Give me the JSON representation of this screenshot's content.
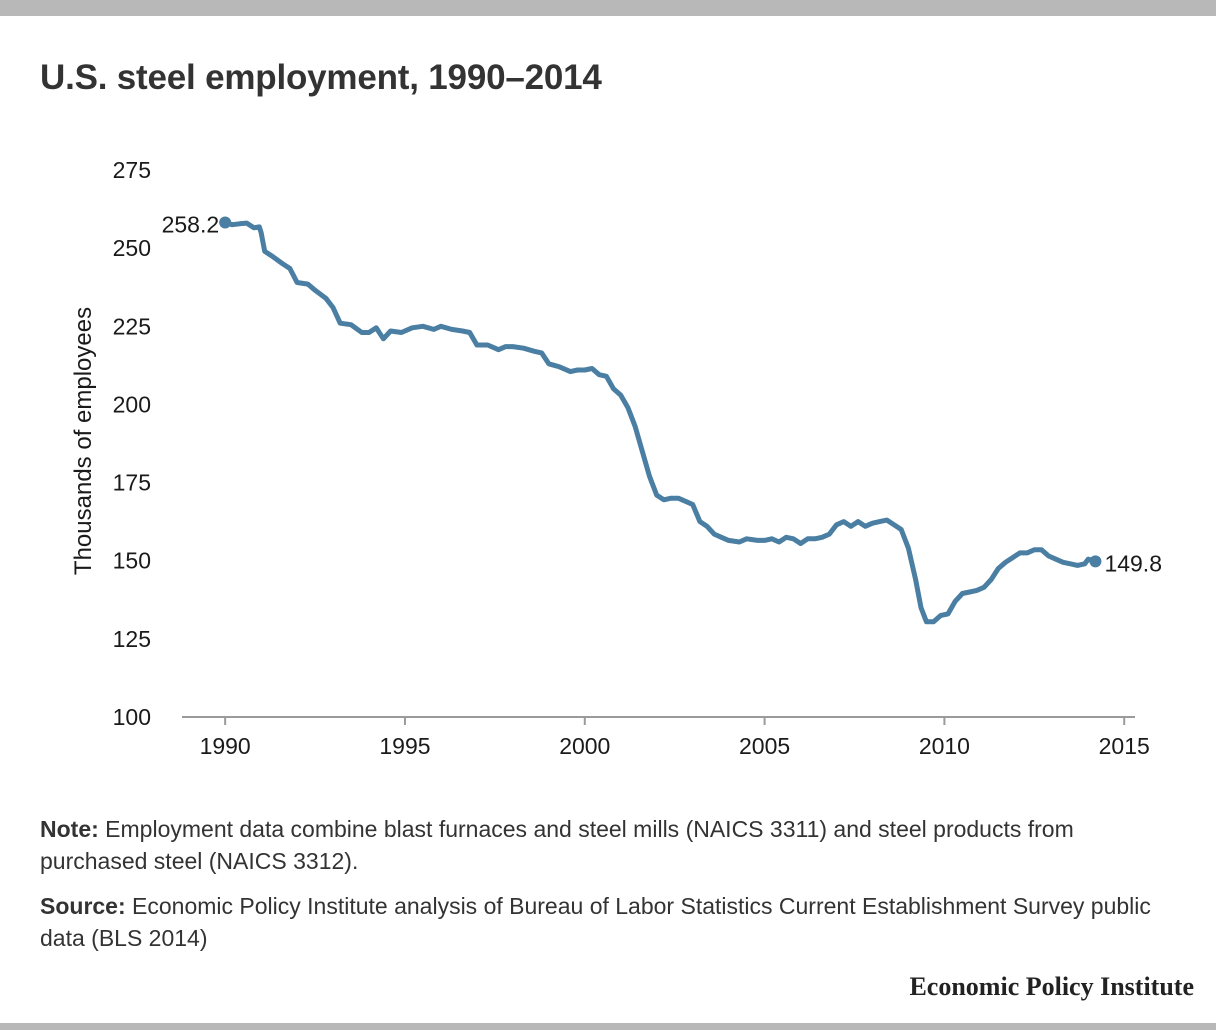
{
  "title": "U.S. steel employment, 1990–2014",
  "note": {
    "label": "Note:",
    "text": "Employment data combine blast furnaces and steel mills (NAICS 3311) and steel products from purchased steel (NAICS 3312)."
  },
  "source": {
    "label": "Source:",
    "text": "Economic Policy Institute analysis of Bureau of Labor Statistics Current Establishment Survey public data (BLS 2014)"
  },
  "brand": "Economic Policy Institute",
  "chart_data": {
    "type": "line",
    "title": "U.S. steel employment, 1990–2014",
    "xlabel": "",
    "ylabel": "Thousands of employees",
    "xlim": [
      1988.8,
      2015.3
    ],
    "ylim": [
      100,
      275
    ],
    "x_ticks": [
      1990,
      1995,
      2000,
      2005,
      2010,
      2015
    ],
    "y_ticks": [
      100,
      125,
      150,
      175,
      200,
      225,
      250,
      275
    ],
    "grid": false,
    "line_color": "#4a7fa3",
    "start_label": "258.2",
    "end_label": "149.8",
    "series": [
      {
        "x": [
          1990.0,
          1990.2,
          1990.4,
          1990.6,
          1990.8,
          1990.95,
          1991.0,
          1991.1,
          1991.3,
          1991.6,
          1991.8,
          1992.0,
          1992.3,
          1992.5,
          1992.8,
          1993.0,
          1993.2,
          1993.5,
          1993.8,
          1994.0,
          1994.2,
          1994.4,
          1994.6,
          1994.9,
          1995.2,
          1995.5,
          1995.8,
          1996.0,
          1996.3,
          1996.6,
          1996.8,
          1997.0,
          1997.3,
          1997.6,
          1997.8,
          1998.0,
          1998.3,
          1998.6,
          1998.8,
          1999.0,
          1999.3,
          1999.6,
          1999.8,
          2000.0,
          2000.2,
          2000.4,
          2000.6,
          2000.8,
          2001.0,
          2001.2,
          2001.4,
          2001.6,
          2001.8,
          2002.0,
          2002.2,
          2002.4,
          2002.6,
          2002.8,
          2003.0,
          2003.2,
          2003.4,
          2003.6,
          2003.8,
          2004.0,
          2004.3,
          2004.5,
          2004.8,
          2005.0,
          2005.2,
          2005.4,
          2005.6,
          2005.8,
          2006.0,
          2006.2,
          2006.4,
          2006.6,
          2006.8,
          2007.0,
          2007.2,
          2007.4,
          2007.6,
          2007.8,
          2008.0,
          2008.2,
          2008.4,
          2008.6,
          2008.8,
          2009.0,
          2009.2,
          2009.35,
          2009.5,
          2009.7,
          2009.9,
          2010.1,
          2010.3,
          2010.5,
          2010.7,
          2010.9,
          2011.1,
          2011.3,
          2011.5,
          2011.7,
          2011.9,
          2012.1,
          2012.3,
          2012.5,
          2012.7,
          2012.9,
          2013.1,
          2013.3,
          2013.5,
          2013.7,
          2013.9,
          2014.0,
          2014.2
        ],
        "y": [
          258.2,
          257.5,
          257.8,
          258.0,
          256.5,
          256.8,
          255.0,
          249.0,
          247.5,
          245.0,
          243.5,
          239.0,
          238.5,
          236.5,
          234.0,
          231.0,
          226.0,
          225.5,
          223.0,
          223.0,
          224.5,
          221.0,
          223.5,
          223.0,
          224.5,
          225.0,
          224.0,
          225.0,
          224.0,
          223.5,
          223.0,
          219.0,
          219.0,
          217.5,
          218.5,
          218.5,
          218.0,
          217.0,
          216.5,
          213.0,
          212.0,
          210.5,
          211.0,
          211.0,
          211.5,
          209.5,
          209.0,
          205.0,
          203.0,
          199.0,
          193.0,
          185.0,
          177.0,
          171.0,
          169.5,
          170.0,
          170.0,
          169.0,
          168.0,
          162.5,
          161.0,
          158.5,
          157.5,
          156.5,
          156.0,
          157.0,
          156.5,
          156.5,
          157.0,
          156.0,
          157.5,
          157.0,
          155.5,
          157.0,
          157.0,
          157.5,
          158.5,
          161.5,
          162.5,
          161.0,
          162.5,
          161.0,
          162.0,
          162.5,
          163.0,
          161.5,
          160.0,
          154.0,
          144.0,
          135.0,
          130.5,
          130.5,
          132.5,
          133.0,
          137.0,
          139.5,
          140.0,
          140.5,
          141.5,
          144.0,
          147.5,
          149.5,
          151.0,
          152.5,
          152.5,
          153.5,
          153.5,
          151.5,
          150.5,
          149.5,
          149.0,
          148.5,
          149.0,
          150.5,
          149.8
        ]
      }
    ]
  }
}
